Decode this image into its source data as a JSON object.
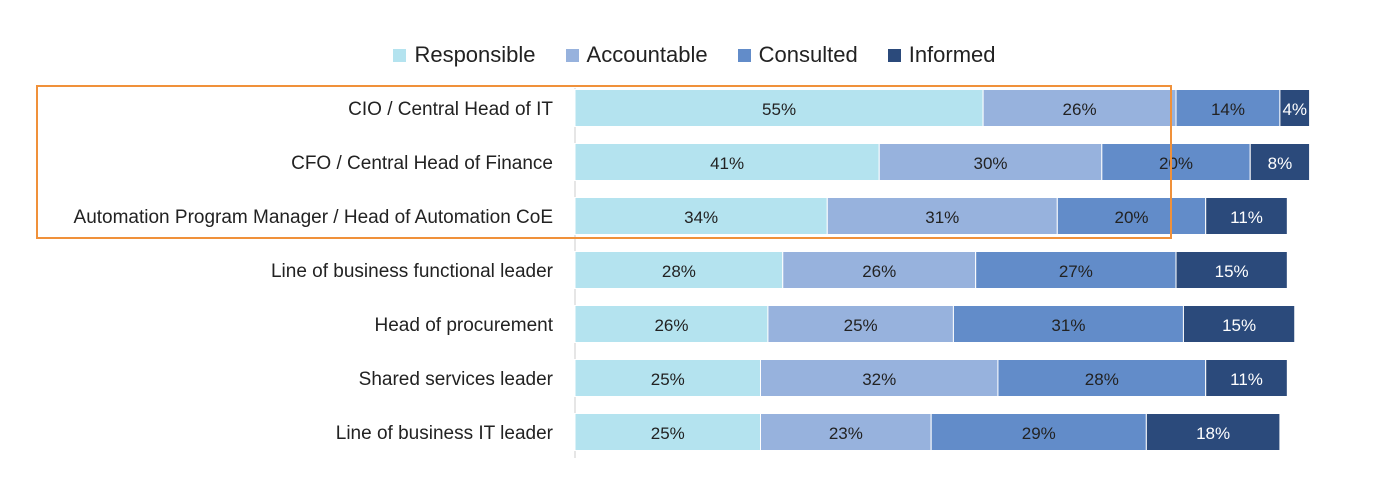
{
  "chart_data": {
    "type": "bar",
    "orientation": "horizontal",
    "stacked": true,
    "categories": [
      "CIO / Central Head of IT",
      "CFO / Central Head of Finance",
      "Automation Program Manager / Head of Automation CoE",
      "Line of business functional leader",
      "Head of procurement",
      "Shared services leader",
      "Line of business IT leader"
    ],
    "series": [
      {
        "name": "Responsible",
        "color": "#b4e3ef",
        "values": [
          55,
          41,
          34,
          28,
          26,
          25,
          25
        ]
      },
      {
        "name": "Accountable",
        "color": "#97b2dd",
        "values": [
          26,
          30,
          31,
          26,
          25,
          32,
          23
        ]
      },
      {
        "name": "Consulted",
        "color": "#628cc9",
        "values": [
          14,
          20,
          20,
          27,
          31,
          28,
          29
        ]
      },
      {
        "name": "Informed",
        "color": "#2b4a7b",
        "values": [
          4,
          8,
          11,
          15,
          15,
          11,
          18
        ]
      }
    ],
    "value_unit": "%",
    "legend_position": "top",
    "grid": false,
    "highlighted_categories": [
      "CIO / Central Head of IT",
      "CFO / Central Head of Finance",
      "Automation Program Manager / Head of Automation CoE"
    ],
    "highlight_color": "#f0913a"
  }
}
